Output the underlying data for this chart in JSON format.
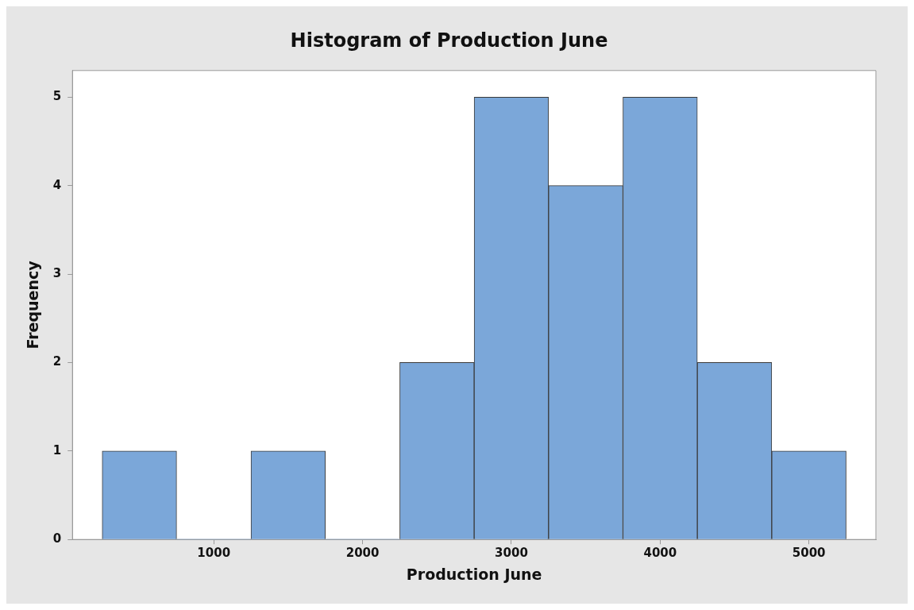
{
  "chart_data": {
    "type": "histogram",
    "title": "Histogram of Production June",
    "xlabel": "Production June",
    "ylabel": "Frequency",
    "bins": [
      250,
      750,
      1250,
      1750,
      2250,
      2750,
      3250,
      3750,
      4250,
      4750,
      5250
    ],
    "values": [
      1,
      0,
      1,
      0,
      2,
      5,
      4,
      5,
      2,
      1
    ],
    "color": "#7ba7d9",
    "xlim": [
      50,
      5450
    ],
    "xticks": [
      1000,
      2000,
      3000,
      4000,
      5000
    ],
    "ylim": [
      0,
      5.3
    ],
    "yticks": [
      0,
      1,
      2,
      3,
      4,
      5
    ]
  }
}
